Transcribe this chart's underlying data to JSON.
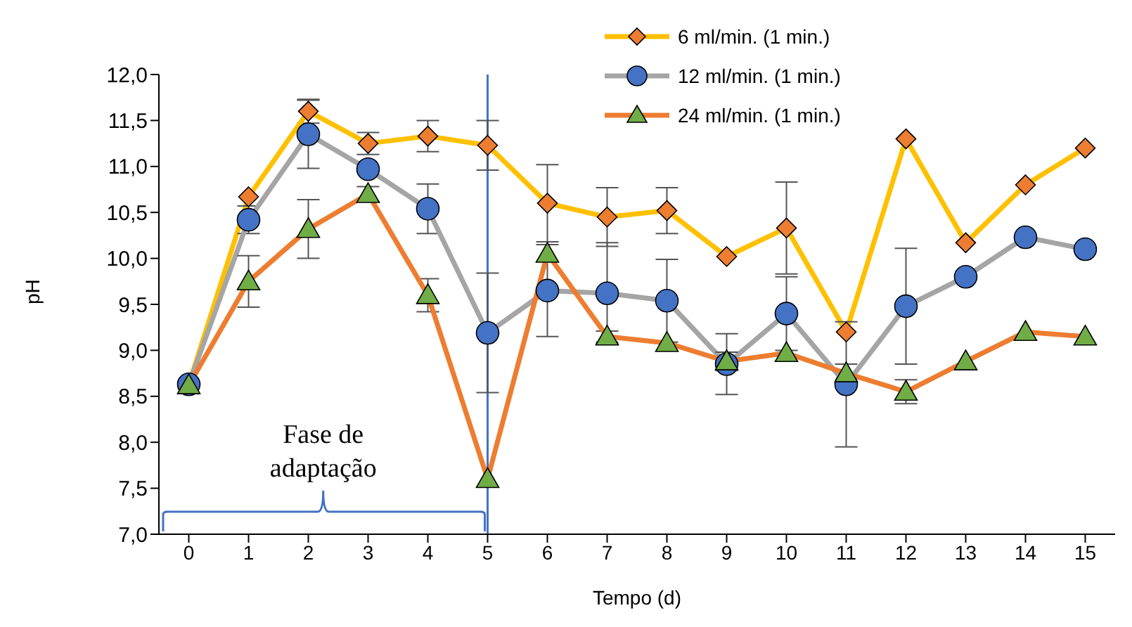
{
  "chart_data": {
    "type": "line",
    "xlabel": "Tempo (d)",
    "ylabel": "pH",
    "x": [
      0,
      1,
      2,
      3,
      4,
      5,
      6,
      7,
      8,
      9,
      10,
      11,
      12,
      13,
      14,
      15
    ],
    "xlim": [
      -0.5,
      15.5
    ],
    "xticks": [
      0,
      1,
      2,
      3,
      4,
      5,
      6,
      7,
      8,
      9,
      10,
      11,
      12,
      13,
      14,
      15
    ],
    "ylim": [
      7,
      12
    ],
    "yticks": [
      {
        "value": 7,
        "label": "7,0"
      },
      {
        "value": 7.5,
        "label": "7,5"
      },
      {
        "value": 8,
        "label": "8,0"
      },
      {
        "value": 8.5,
        "label": "8,5"
      },
      {
        "value": 9,
        "label": "9,0"
      },
      {
        "value": 9.5,
        "label": "9,5"
      },
      {
        "value": 10,
        "label": "10,0"
      },
      {
        "value": 10.5,
        "label": "10,5"
      },
      {
        "value": 11,
        "label": "11,0"
      },
      {
        "value": 11.5,
        "label": "11,5"
      },
      {
        "value": 12,
        "label": "12,0"
      }
    ],
    "legend": "top right",
    "series": [
      {
        "name": "6 ml/min. (1 min.)",
        "color": "#ffc000",
        "marker": "diamond",
        "colors": [
          "#ed7d31",
          "#ed7d31",
          "#ed7d31",
          "#ed7d31",
          "#ed7d31",
          "#ed7d31",
          "#ed7d31",
          "#ed7d31",
          "#ed7d31",
          "#ed7d31",
          "#ed7d31",
          "#ed7d31",
          "#ed7d31",
          "#ed7d31",
          "#ed7d31",
          "#ed7d31"
        ],
        "values": [
          8.63,
          10.67,
          11.6,
          11.25,
          11.33,
          11.23,
          10.6,
          10.45,
          10.52,
          10.02,
          10.33,
          9.2,
          11.3,
          10.17,
          10.8,
          11.2
        ],
        "errors": [
          null,
          null,
          0.13,
          0.12,
          0.17,
          0.27,
          0.42,
          0.32,
          0.25,
          null,
          0.5,
          null,
          null,
          null,
          null,
          null
        ]
      },
      {
        "name": "12 ml/min. (1 min.)",
        "color": "#a5a5a5",
        "marker": "circle",
        "colors": [
          "#4472c4",
          "#4472c4",
          "#4472c4",
          "#4472c4",
          "#4472c4",
          "#4472c4",
          "#4472c4",
          "#4472c4",
          "#4472c4",
          "#4472c4",
          "#4472c4",
          "#4472c4",
          "#4472c4",
          "#4472c4",
          "#4472c4",
          "#4472c4"
        ],
        "values": [
          8.63,
          10.42,
          11.35,
          10.97,
          10.54,
          9.19,
          9.65,
          9.62,
          9.54,
          8.85,
          9.4,
          8.63,
          9.48,
          9.8,
          10.23,
          10.1
        ],
        "errors": [
          null,
          0.15,
          0.37,
          null,
          0.27,
          0.65,
          0.5,
          0.55,
          0.45,
          0.33,
          0.4,
          0.68,
          0.63,
          null,
          null,
          null
        ]
      },
      {
        "name": "24 ml/min. (1 min.)",
        "color": "#ed7d31",
        "marker": "triangle",
        "colors": [
          "#70ad47",
          "#70ad47",
          "#70ad47",
          "#70ad47",
          "#70ad47",
          "#70ad47",
          "#70ad47",
          "#70ad47",
          "#70ad47",
          "#70ad47",
          "#70ad47",
          "#70ad47",
          "#70ad47",
          "#70ad47",
          "#70ad47",
          "#70ad47"
        ],
        "values": [
          8.62,
          9.75,
          10.32,
          10.7,
          9.6,
          7.6,
          10.05,
          9.15,
          9.08,
          8.88,
          8.97,
          8.75,
          8.55,
          8.88,
          9.2,
          9.15
        ],
        "errors": [
          null,
          0.28,
          0.32,
          0.08,
          0.18,
          null,
          null,
          0.06,
          null,
          0.1,
          null,
          0.1,
          0.13,
          null,
          null,
          null
        ]
      }
    ],
    "ref_lines": [
      {
        "axis": "x",
        "value": 5,
        "color": "#4472c4"
      }
    ],
    "annotations": [
      "Fase de adaptação"
    ]
  }
}
